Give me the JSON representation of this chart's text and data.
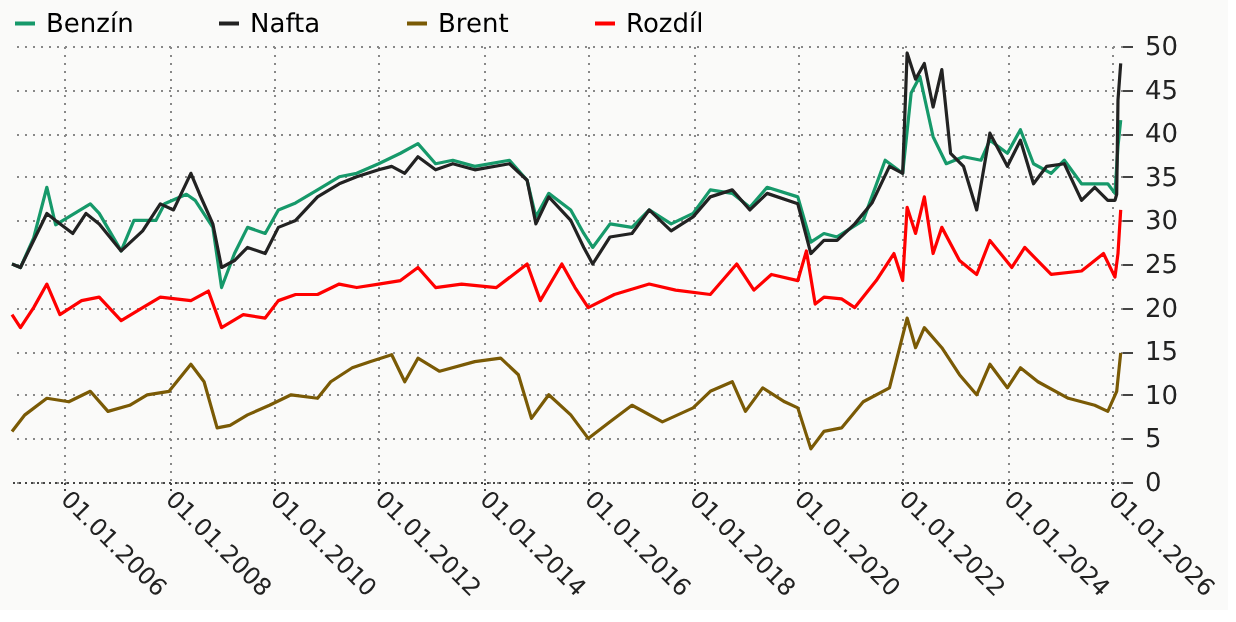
{
  "chart_data": {
    "type": "line",
    "xlim": [
      "2005-01-01",
      "2026-03-10"
    ],
    "xticks": [
      {
        "value": "2006-01-01",
        "label": "01.01.2006"
      },
      {
        "value": "2008-01-01",
        "label": "01.01.2008"
      },
      {
        "value": "2010-01-01",
        "label": "01.01.2010"
      },
      {
        "value": "2012-01-01",
        "label": "01.01.2012"
      },
      {
        "value": "2014-01-01",
        "label": "01.01.2014"
      },
      {
        "value": "2016-01-01",
        "label": "01.01.2016"
      },
      {
        "value": "2018-01-01",
        "label": "01.01.2018"
      },
      {
        "value": "2020-01-01",
        "label": "01.01.2020"
      },
      {
        "value": "2022-01-01",
        "label": "01.01.2022"
      },
      {
        "value": "2024-01-01",
        "label": "01.01.2024"
      },
      {
        "value": "2026-01-01",
        "label": "01.01.2026"
      }
    ],
    "ylim": [
      0,
      50
    ],
    "yticks": [
      0,
      5,
      10,
      15,
      20,
      25,
      30,
      35,
      40,
      45,
      50
    ],
    "grid": true,
    "legend": "top left",
    "marker": "none",
    "line_style": "solid",
    "series": [
      {
        "name": "Benzín",
        "color": "#16996a",
        "x": [
          "2005-01",
          "2005-03",
          "2005-06",
          "2005-09",
          "2005-11",
          "2006-07",
          "2006-09",
          "2007-02",
          "2007-05",
          "2007-10",
          "2007-12",
          "2008-05",
          "2008-07",
          "2008-11",
          "2009-01",
          "2009-04",
          "2009-07",
          "2009-11",
          "2010-02",
          "2010-06",
          "2010-11",
          "2011-04",
          "2011-08",
          "2012-01",
          "2012-06",
          "2012-10",
          "2013-02",
          "2013-06",
          "2013-11",
          "2014-07",
          "2014-11",
          "2015-01",
          "2015-04",
          "2015-09",
          "2015-12",
          "2016-02",
          "2016-06",
          "2016-11",
          "2017-03",
          "2017-08",
          "2018-01",
          "2018-05",
          "2018-10",
          "2019-02",
          "2019-06",
          "2020-01",
          "2020-04",
          "2020-07",
          "2020-10",
          "2021-04",
          "2021-09",
          "2022-01",
          "2022-03",
          "2022-05",
          "2022-08",
          "2022-11",
          "2023-03",
          "2023-07",
          "2023-09",
          "2024-01",
          "2024-04",
          "2024-07",
          "2024-11",
          "2025-02",
          "2025-06",
          "2025-12",
          "2026-01-20",
          "2026-02-10",
          "2026-03-01"
        ],
        "values": [
          25,
          24.6,
          28,
          33.8,
          29.5,
          31.9,
          30.8,
          26.5,
          30,
          30,
          31.9,
          33,
          32.3,
          29.2,
          22.3,
          26.2,
          29.2,
          28.5,
          31.2,
          32,
          33.5,
          35,
          35.4,
          36.5,
          37.7,
          38.8,
          36.5,
          36.9,
          36.2,
          36.9,
          34.6,
          30.4,
          33.1,
          31.2,
          28.5,
          26.9,
          29.6,
          29.2,
          31.2,
          29.6,
          30.8,
          33.5,
          33.1,
          31.5,
          33.8,
          32.7,
          27.5,
          28.5,
          28.1,
          30,
          36.9,
          35.4,
          44.6,
          46.5,
          39.6,
          36.5,
          37.3,
          36.9,
          39.2,
          37.7,
          40.4,
          36.5,
          35.4,
          36.9,
          34.2,
          34.2,
          33.1,
          38.5,
          41.5
        ]
      },
      {
        "name": "Nafta",
        "color": "#222222",
        "x": [
          "2005-01",
          "2005-03",
          "2005-06",
          "2005-09",
          "2005-11",
          "2006-03",
          "2006-06",
          "2006-09",
          "2007-02",
          "2007-07",
          "2007-11",
          "2008-02",
          "2008-06",
          "2008-08",
          "2008-11",
          "2009-01",
          "2009-04",
          "2009-07",
          "2009-11",
          "2010-02",
          "2010-06",
          "2010-11",
          "2011-04",
          "2011-08",
          "2012-01",
          "2012-04",
          "2012-07",
          "2012-10",
          "2013-02",
          "2013-06",
          "2013-11",
          "2014-07",
          "2014-11",
          "2015-01",
          "2015-04",
          "2015-09",
          "2015-12",
          "2016-02",
          "2016-06",
          "2016-11",
          "2017-03",
          "2017-08",
          "2018-01",
          "2018-05",
          "2018-10",
          "2019-02",
          "2019-06",
          "2020-01",
          "2020-04",
          "2020-07",
          "2020-10",
          "2021-02",
          "2021-06",
          "2021-10",
          "2022-01",
          "2022-02",
          "2022-04",
          "2022-06",
          "2022-08",
          "2022-10",
          "2022-12",
          "2023-03",
          "2023-06",
          "2023-09",
          "2024-01",
          "2024-04",
          "2024-07",
          "2024-10",
          "2025-02",
          "2025-06",
          "2025-09",
          "2025-12",
          "2026-01-20",
          "2026-02-01",
          "2026-02-10",
          "2026-03-01"
        ],
        "values": [
          25,
          24.6,
          27.7,
          30.8,
          30,
          28.5,
          30.8,
          29.6,
          26.5,
          28.8,
          31.9,
          31.2,
          35.4,
          33,
          29.6,
          24.6,
          25.4,
          26.9,
          26.2,
          29.2,
          30,
          32.7,
          34.2,
          35,
          35.8,
          36.2,
          35.4,
          37.3,
          35.8,
          36.5,
          35.8,
          36.5,
          34.6,
          29.6,
          32.7,
          30,
          26.9,
          25,
          28.1,
          28.5,
          31.2,
          28.8,
          30.4,
          32.7,
          33.5,
          31.2,
          33.1,
          31.9,
          26.2,
          27.7,
          27.7,
          29.6,
          32,
          36.2,
          35.4,
          49.2,
          46.2,
          48,
          43,
          47.3,
          37.7,
          36.2,
          31.2,
          40,
          36.2,
          39.2,
          34.2,
          36.2,
          36.5,
          32.3,
          33.8,
          32.3,
          32.3,
          33,
          43.8,
          48
        ]
      },
      {
        "name": "Brent",
        "color": "#7a5a05",
        "x": [
          "2005-01",
          "2005-04",
          "2005-09",
          "2006-02",
          "2006-07",
          "2006-11",
          "2007-04",
          "2007-08",
          "2008-01",
          "2008-06",
          "2008-09",
          "2008-12",
          "2009-03",
          "2009-07",
          "2009-12",
          "2010-05",
          "2010-11",
          "2011-02",
          "2011-07",
          "2011-11",
          "2012-04",
          "2012-07",
          "2012-10",
          "2013-03",
          "2013-11",
          "2014-05",
          "2014-09",
          "2014-12",
          "2015-04",
          "2015-09",
          "2016-01",
          "2016-06",
          "2016-11",
          "2017-06",
          "2018-01",
          "2018-05",
          "2018-10",
          "2019-01",
          "2019-05",
          "2019-10",
          "2020-01",
          "2020-04",
          "2020-07",
          "2020-11",
          "2021-04",
          "2021-10",
          "2022-02",
          "2022-04",
          "2022-06",
          "2022-10",
          "2023-02",
          "2023-06",
          "2023-09",
          "2024-01",
          "2024-04",
          "2024-08",
          "2025-03",
          "2025-09",
          "2025-12",
          "2026-02-01",
          "2026-03-01"
        ],
        "values": [
          5.8,
          7.7,
          9.6,
          9.2,
          10.4,
          8.1,
          8.8,
          10,
          10.4,
          13.5,
          11.5,
          6.2,
          6.5,
          7.7,
          8.8,
          10,
          9.6,
          11.5,
          13.1,
          13.8,
          14.6,
          11.5,
          14.2,
          12.7,
          13.8,
          14.2,
          12.3,
          7.3,
          10,
          7.7,
          5,
          6.9,
          8.8,
          6.9,
          8.5,
          10.4,
          11.5,
          8.1,
          10.8,
          9.2,
          8.5,
          3.8,
          5.8,
          6.2,
          9.2,
          10.8,
          18.8,
          15.4,
          17.7,
          15.4,
          12.3,
          10,
          13.5,
          10.8,
          13.1,
          11.5,
          9.6,
          8.8,
          8.1,
          10.4,
          14.8
        ]
      },
      {
        "name": "Rozdíl",
        "color": "#ff0000",
        "x": [
          "2005-01",
          "2005-03",
          "2005-06",
          "2005-09",
          "2005-12",
          "2006-05",
          "2006-09",
          "2007-02",
          "2007-07",
          "2007-11",
          "2008-06",
          "2008-10",
          "2009-01",
          "2009-06",
          "2009-11",
          "2010-02",
          "2010-06",
          "2010-11",
          "2011-04",
          "2011-08",
          "2012-01",
          "2012-06",
          "2012-10",
          "2013-02",
          "2013-08",
          "2014-04",
          "2014-11",
          "2015-02",
          "2015-07",
          "2015-10",
          "2016-01",
          "2016-07",
          "2017-03",
          "2017-09",
          "2018-05",
          "2018-11",
          "2019-03",
          "2019-07",
          "2020-01",
          "2020-03",
          "2020-05",
          "2020-07",
          "2020-11",
          "2021-02",
          "2021-07",
          "2021-11",
          "2022-01",
          "2022-02",
          "2022-04",
          "2022-06",
          "2022-08",
          "2022-10",
          "2023-02",
          "2023-06",
          "2023-09",
          "2024-02",
          "2024-05",
          "2024-11",
          "2025-06",
          "2025-11",
          "2026-01-20",
          "2026-02-10",
          "2026-03-01"
        ],
        "values": [
          19.2,
          17.7,
          20,
          22.7,
          19.2,
          20.8,
          21.2,
          18.5,
          20,
          21.2,
          20.8,
          21.9,
          17.7,
          19.2,
          18.8,
          20.8,
          21.5,
          21.5,
          22.7,
          22.3,
          22.7,
          23.1,
          24.6,
          22.3,
          22.7,
          22.3,
          25,
          20.8,
          25,
          22.3,
          20,
          21.5,
          22.7,
          22,
          21.5,
          25,
          22,
          23.8,
          23.1,
          26.5,
          20.4,
          21.2,
          21,
          20,
          23.1,
          26.2,
          23.1,
          31.5,
          28.5,
          32.7,
          26.2,
          29.2,
          25.4,
          23.8,
          27.7,
          24.6,
          26.9,
          23.8,
          24.2,
          26.2,
          23.5,
          26.2,
          31.2
        ]
      }
    ]
  }
}
